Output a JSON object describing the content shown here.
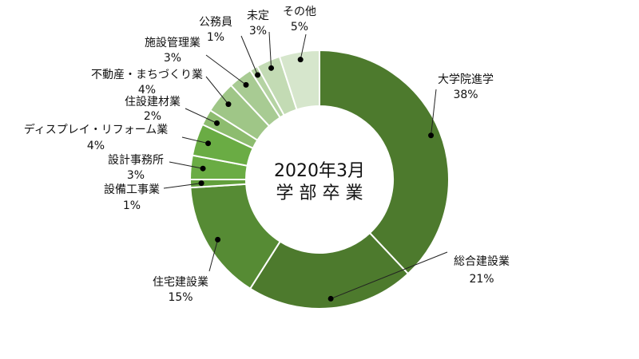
{
  "chart_data": {
    "type": "pie",
    "title": "",
    "center_label": [
      "2020年3月",
      "学 部 卒 業"
    ],
    "start_angle_deg": 0,
    "direction": "clockwise",
    "slices": [
      {
        "name": "大学院進学",
        "value": 38,
        "value_label": "38%",
        "color": "#4d7a2d"
      },
      {
        "name": "総合建設業",
        "value": 21,
        "value_label": "21%",
        "color": "#4d7a2d"
      },
      {
        "name": "住宅建設業",
        "value": 15,
        "value_label": "15%",
        "color": "#568b34"
      },
      {
        "name": "設備工事業",
        "value": 1,
        "value_label": "1%",
        "color": "#62a03c"
      },
      {
        "name": "設計事務所",
        "value": 3,
        "value_label": "3%",
        "color": "#6aac44"
      },
      {
        "name": "ディスプレイ・リフォーム業",
        "value": 4,
        "value_label": "4%",
        "color": "#6aac44"
      },
      {
        "name": "住設建材業",
        "value": 2,
        "value_label": "2%",
        "color": "#8dbc6f"
      },
      {
        "name": "不動産・まちづくり業",
        "value": 4,
        "value_label": "4%",
        "color": "#9fc687"
      },
      {
        "name": "施設管理業",
        "value": 3,
        "value_label": "3%",
        "color": "#a8cb93"
      },
      {
        "name": "公務員",
        "value": 1,
        "value_label": "1%",
        "color": "#b5d3a3"
      },
      {
        "name": "未定",
        "value": 3,
        "value_label": "3%",
        "color": "#c3dbb4"
      },
      {
        "name": "その他",
        "value": 5,
        "value_label": "5%",
        "color": "#d6e6cc"
      }
    ]
  }
}
